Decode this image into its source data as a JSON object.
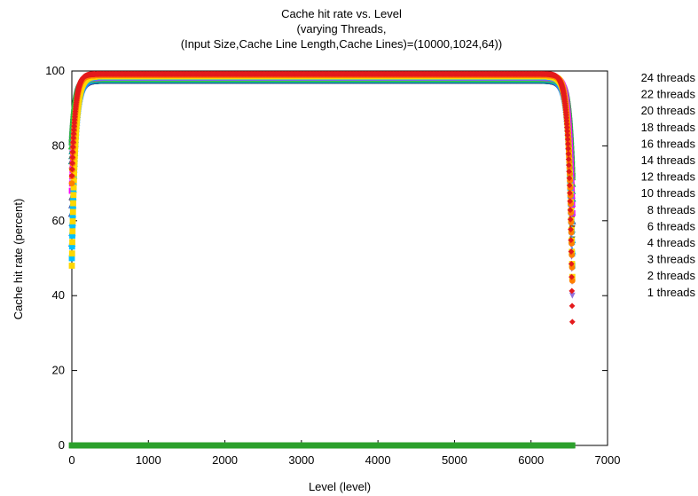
{
  "chart_data": {
    "type": "scatter",
    "title_lines": [
      "Cache hit rate vs. Level",
      "(varying Threads,",
      "(Input Size,Cache Line Length,Cache Lines)=(10000,1024,64))"
    ],
    "xlabel": "Level (level)",
    "ylabel": "Cache hit rate (percent)",
    "xlim": [
      0,
      7000
    ],
    "ylim": [
      0,
      100
    ],
    "x_ticks": [
      "0",
      "1000",
      "2000",
      "3000",
      "4000",
      "5000",
      "6000",
      "7000"
    ],
    "y_ticks": [
      "0",
      "20",
      "40",
      "60",
      "80",
      "100"
    ],
    "grid": false,
    "legend_position": "right-outside",
    "x_range_data": [
      0,
      6540
    ],
    "series": [
      {
        "name": "24 threads",
        "color": "#e41a1c",
        "marker": "diamond",
        "plateau": 99.2,
        "start": 72,
        "end": 33
      },
      {
        "name": "22 threads",
        "color": "#ff7f00",
        "marker": "circle",
        "plateau": 98.9,
        "start": 70,
        "end": 44
      },
      {
        "name": "20 threads",
        "color": "#ffd700",
        "marker": "square",
        "plateau": 98.6,
        "start": 48,
        "end": 45
      },
      {
        "name": "18 threads",
        "color": "#00c0ff",
        "marker": "square",
        "plateau": 98.4,
        "start": 50,
        "end": 48
      },
      {
        "name": "16 threads",
        "color": "#ff00ff",
        "marker": "square",
        "plateau": 98.2,
        "start": 68,
        "end": 62
      },
      {
        "name": "14 threads",
        "color": "#32cd32",
        "marker": "triangle",
        "plateau": 98.0,
        "start": 80,
        "end": 70
      },
      {
        "name": "12 threads",
        "color": "#1e90ff",
        "marker": "triangle",
        "plateau": 97.9,
        "start": 54,
        "end": 52
      },
      {
        "name": "10 threads",
        "color": "#8b4513",
        "marker": "triangle-down",
        "plateau": 97.8,
        "start": 65,
        "end": 58
      },
      {
        "name": "8 threads",
        "color": "#556b2f",
        "marker": "triangle-down",
        "plateau": 97.7,
        "start": 58,
        "end": 55
      },
      {
        "name": "6 threads",
        "color": "#008b8b",
        "marker": "triangle",
        "plateau": 97.6,
        "start": 76,
        "end": 66
      },
      {
        "name": "4 threads",
        "color": "#483d8b",
        "marker": "triangle",
        "plateau": 97.5,
        "start": 62,
        "end": 60
      },
      {
        "name": "3 threads",
        "color": "#daa520",
        "marker": "circle",
        "plateau": 97.5,
        "start": 74,
        "end": 64
      },
      {
        "name": "2 threads",
        "color": "#2e8b57",
        "marker": "square",
        "plateau": 97.4,
        "start": 81,
        "end": 72
      },
      {
        "name": "1 threads",
        "color": "#9370db",
        "marker": "triangle-down",
        "plateau": 97.3,
        "start": 78,
        "end": 40
      }
    ],
    "zero_series": {
      "color": "#2ca02c",
      "value": 0
    }
  }
}
